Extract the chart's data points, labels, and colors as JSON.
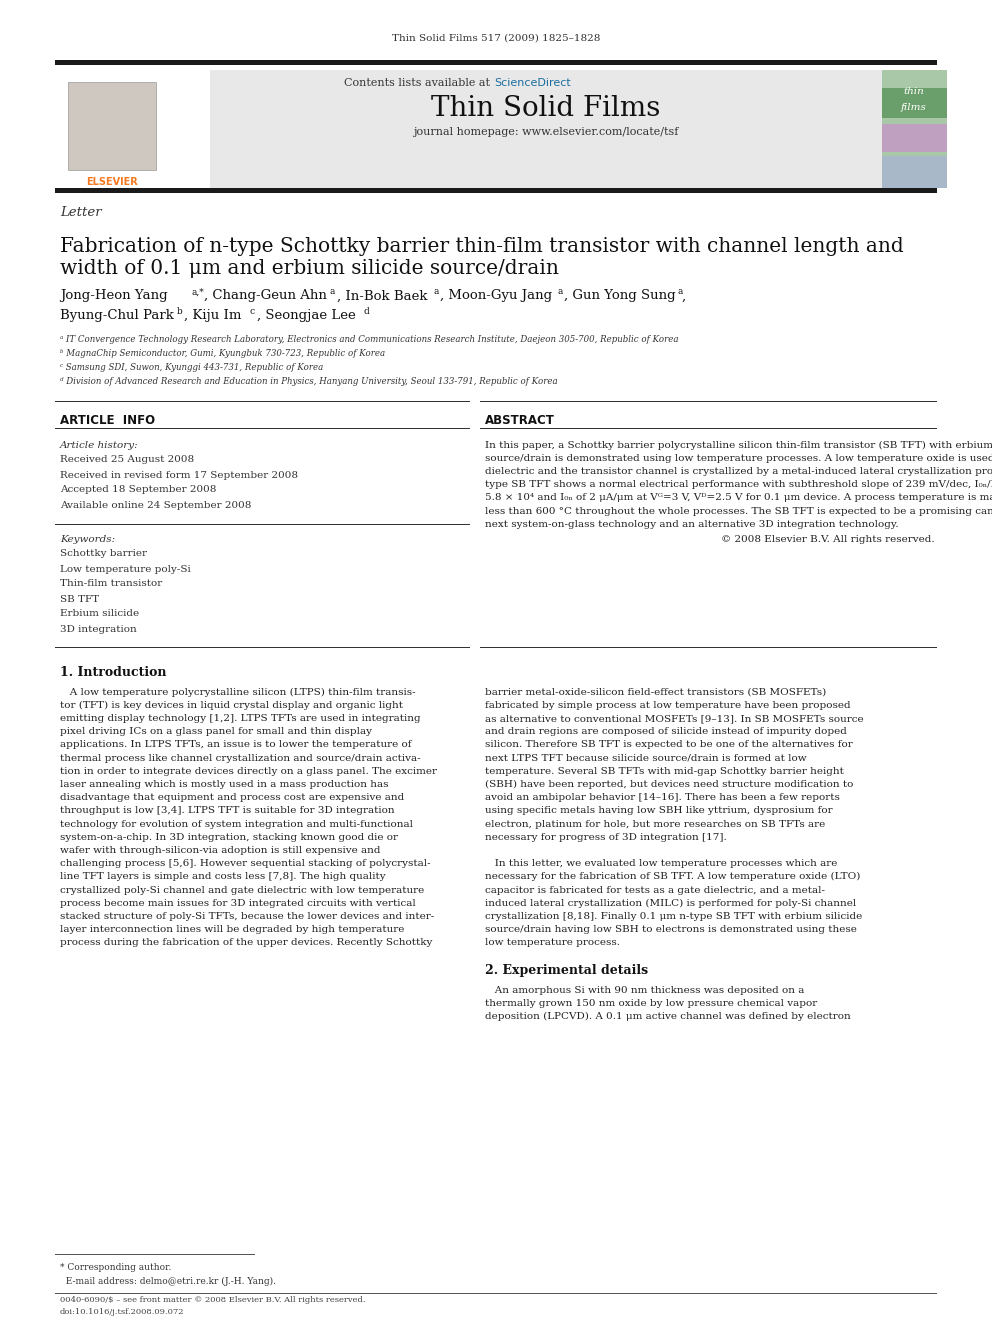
{
  "page_bg": "#ffffff",
  "header_journal_line": "Thin Solid Films 517 (2009) 1825–1828",
  "header_contents": "Contents lists available at",
  "header_sciencedirect": "ScienceDirect",
  "header_journal_name": "Thin Solid Films",
  "header_url": "journal homepage: www.elsevier.com/locate/tsf",
  "header_bg": "#e8e8e8",
  "article_type": "Letter",
  "title_line1": "Fabrication of n-type Schottky barrier thin-film transistor with channel length and",
  "title_line2": "width of 0.1 μm and erbium silicide source/drain",
  "affil_a": "ᵃ IT Convergence Technology Research Laboratory, Electronics and Communications Research Institute, Daejeon 305-700, Republic of Korea",
  "affil_b": "ᵇ MagnaChip Semiconductor, Gumi, Kyungbuk 730-723, Republic of Korea",
  "affil_c": "ᶜ Samsung SDI, Suwon, Kyunggi 443-731, Republic of Korea",
  "affil_d": "ᵈ Division of Advanced Research and Education in Physics, Hanyang University, Seoul 133-791, Republic of Korea",
  "article_info_header": "ARTICLE  INFO",
  "abstract_header": "ABSTRACT",
  "article_history_label": "Article history:",
  "received1": "Received 25 August 2008",
  "received2": "Received in revised form 17 September 2008",
  "accepted": "Accepted 18 September 2008",
  "available": "Available online 24 September 2008",
  "keywords_label": "Keywords:",
  "kw1": "Schottky barrier",
  "kw2": "Low temperature poly-Si",
  "kw3": "Thin-film transistor",
  "kw4": "SB TFT",
  "kw5": "Erbium silicide",
  "kw6": "3D integration",
  "intro_header": "1. Introduction",
  "exp_header": "2. Experimental details",
  "elsevier_orange": "#f47920",
  "sciencedirect_blue": "#1a6d9e",
  "dark_bar": "#1a1a1a"
}
